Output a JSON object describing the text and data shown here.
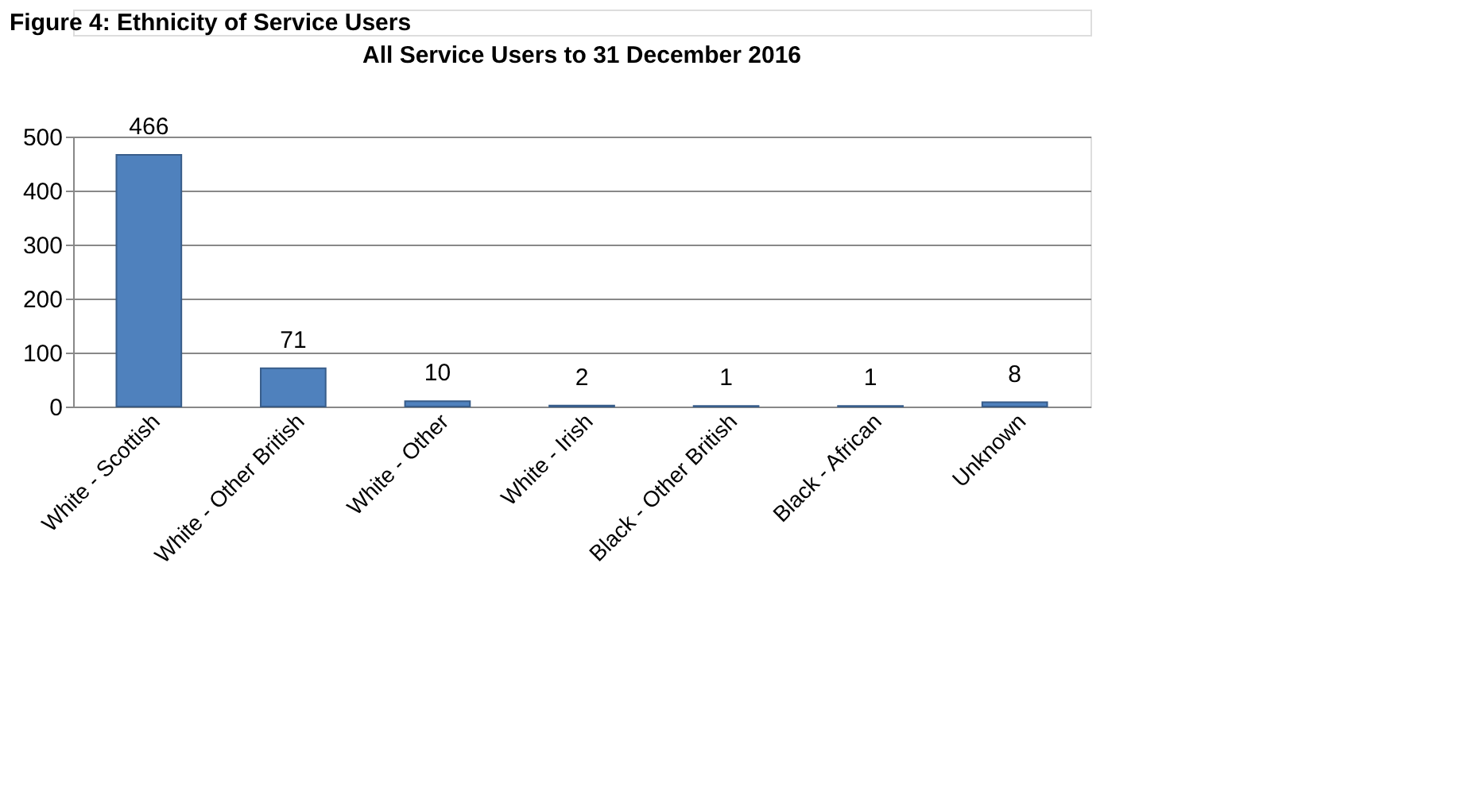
{
  "chart_data": {
    "type": "bar",
    "title": "All Service Users to 31 December 2016",
    "annotations": [
      "Figure 4: Ethnicity of Service Users"
    ],
    "categories": [
      "White - Scottish",
      "White - Other British",
      "White - Other",
      "White - Irish",
      "Black - Other British",
      "Black - African",
      "Unknown"
    ],
    "values": [
      466,
      71,
      10,
      2,
      1,
      1,
      8
    ],
    "color": "#4f81bd",
    "data_labels": true,
    "ylim": [
      0,
      500
    ],
    "yticks": [
      0,
      100,
      200,
      300,
      400,
      500
    ],
    "grid": "y"
  }
}
